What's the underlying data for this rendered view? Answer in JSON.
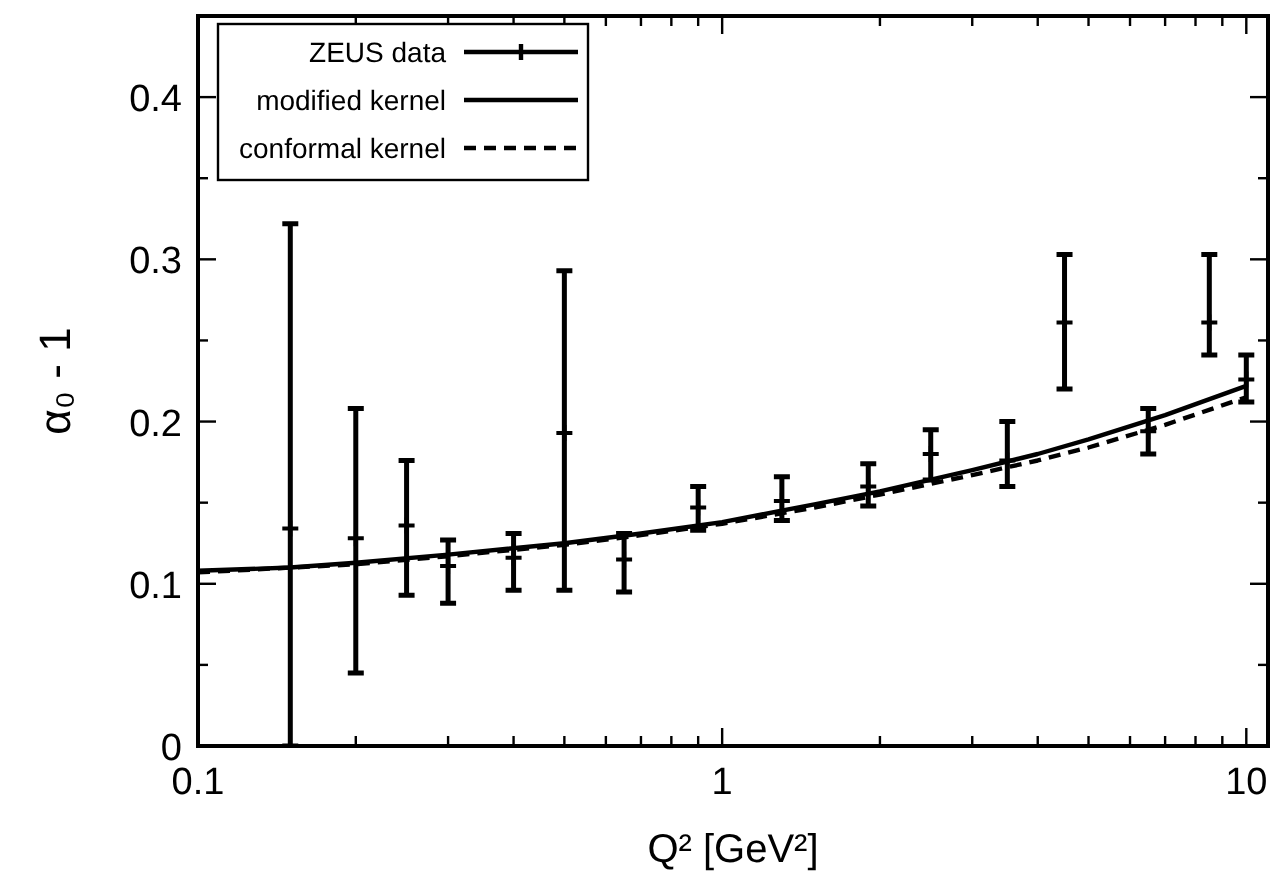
{
  "chart_data": {
    "type": "scatter",
    "xlabel": "Q² [GeV²]",
    "ylabel": "α₀ - 1",
    "log": "x",
    "xlim": [
      0.1,
      11
    ],
    "ylim": [
      0,
      0.45
    ],
    "xticks": [
      0.1,
      {
        "value": 0.2,
        "label": null
      },
      {
        "value": 0.3,
        "label": null
      },
      {
        "value": 0.4,
        "label": null
      },
      {
        "value": 0.5,
        "label": null
      },
      {
        "value": 0.6,
        "label": null
      },
      {
        "value": 0.7,
        "label": null
      },
      {
        "value": 0.8,
        "label": null
      },
      {
        "value": 0.9,
        "label": null
      },
      1,
      {
        "value": 2,
        "label": null
      },
      {
        "value": 3,
        "label": null
      },
      {
        "value": 4,
        "label": null
      },
      {
        "value": 5,
        "label": null
      },
      {
        "value": 6,
        "label": null
      },
      {
        "value": 7,
        "label": null
      },
      {
        "value": 8,
        "label": null
      },
      {
        "value": 9,
        "label": null
      },
      10
    ],
    "yticks": [
      0,
      {
        "value": 0.05,
        "label": null
      },
      0.1,
      {
        "value": 0.15,
        "label": null
      },
      0.2,
      {
        "value": 0.25,
        "label": null
      },
      0.3,
      {
        "value": 0.35,
        "label": null
      },
      0.4
    ],
    "legend": "top left",
    "grid": false,
    "series": [
      {
        "name": "ZEUS data",
        "marker": "cross",
        "color": "#000000",
        "x": [
          0.15,
          0.2,
          0.25,
          0.3,
          0.4,
          0.5,
          0.65,
          0.9,
          1.3,
          1.9,
          2.5,
          3.5,
          4.5,
          6.5,
          8.5,
          10
        ],
        "values": [
          0.134,
          0.128,
          0.136,
          0.111,
          0.116,
          0.193,
          0.115,
          0.147,
          0.151,
          0.16,
          0.18,
          0.176,
          0.261,
          0.194,
          0.261,
          0.226
        ],
        "errors": [
          [
            0,
            0.322
          ],
          [
            0.045,
            0.208
          ],
          [
            0.093,
            0.176
          ],
          [
            0.088,
            0.127
          ],
          [
            0.096,
            0.131
          ],
          [
            0.096,
            0.293
          ],
          [
            0.095,
            0.131
          ],
          [
            0.133,
            0.16
          ],
          [
            0.139,
            0.166
          ],
          [
            0.148,
            0.174
          ],
          [
            0.164,
            0.195
          ],
          [
            0.16,
            0.2
          ],
          [
            0.22,
            0.303
          ],
          [
            0.18,
            0.208
          ],
          [
            0.241,
            0.303
          ],
          [
            0.212,
            0.241
          ]
        ]
      },
      {
        "name": "modified kernel",
        "type": "line",
        "line_style": "solid",
        "marker": "none",
        "color": "#000000",
        "x": [
          0.1,
          0.15,
          0.2,
          0.3,
          0.5,
          0.7,
          1,
          1.5,
          2,
          3,
          4,
          5,
          7,
          10
        ],
        "values": [
          0.108,
          0.11,
          0.113,
          0.118,
          0.125,
          0.131,
          0.138,
          0.149,
          0.157,
          0.17,
          0.18,
          0.189,
          0.204,
          0.222
        ]
      },
      {
        "name": "conformal kernel",
        "type": "line",
        "line_style": "dashed",
        "marker": "none",
        "color": "#000000",
        "x": [
          0.1,
          0.15,
          0.2,
          0.3,
          0.5,
          0.7,
          1,
          1.5,
          2,
          3,
          4,
          5,
          7,
          10
        ],
        "values": [
          0.107,
          0.11,
          0.112,
          0.117,
          0.124,
          0.13,
          0.137,
          0.147,
          0.155,
          0.167,
          0.176,
          0.184,
          0.198,
          0.215
        ]
      }
    ]
  }
}
